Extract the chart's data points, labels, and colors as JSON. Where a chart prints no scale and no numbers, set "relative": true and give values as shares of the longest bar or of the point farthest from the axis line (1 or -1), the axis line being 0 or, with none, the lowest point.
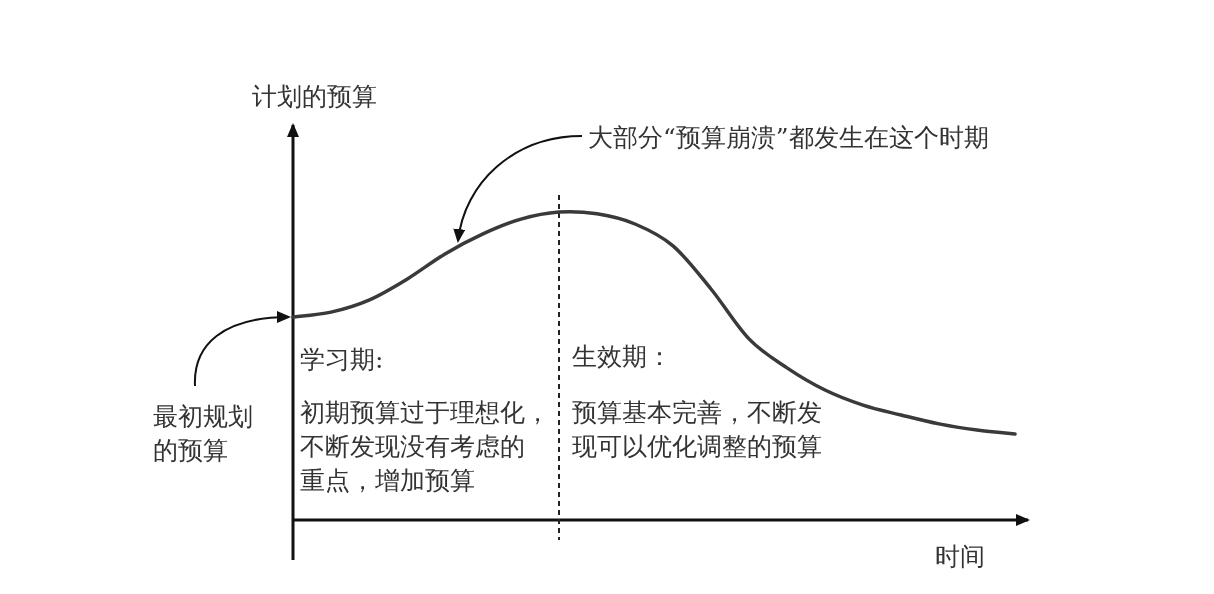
{
  "chart_data": {
    "type": "line",
    "relative": true,
    "ylabel": "计划的预算",
    "xlabel": "时间",
    "categories": [
      null,
      null,
      null,
      null,
      null,
      null,
      null,
      null,
      null,
      null,
      null,
      null,
      null,
      null,
      null,
      null,
      null,
      null,
      null,
      null
    ],
    "series": [
      {
        "color": "#3a3a3a",
        "values": [
          0.659,
          0.675,
          0.714,
          0.782,
          0.864,
          0.929,
          0.977,
          1,
          0.994,
          0.961,
          0.89,
          0.75,
          0.588,
          0.494,
          0.422,
          0.373,
          0.341,
          0.312,
          0.292,
          0.279
        ]
      }
    ],
    "marker": "none",
    "line_style": "solid",
    "annotations": [
      "大部分“预算崩溃”都发生在这个时期",
      "最初规划的预算",
      "学习期:",
      "初期预算过于理想化，不断发现没有考虑的重点，增加预算",
      "生效期：",
      "预算基本完善，不断发现可以优化调整的预算"
    ]
  }
}
